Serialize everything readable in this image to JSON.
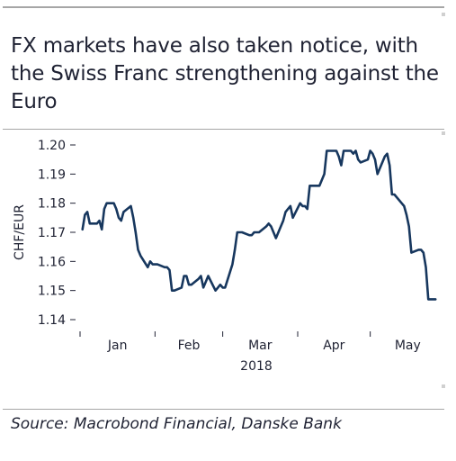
{
  "title": "FX markets have also taken notice, with the Swiss Franc strengthening against the Euro",
  "source": "Source: Macrobond Financial, Danske Bank",
  "colors": {
    "line": "#17375e",
    "text": "#1f2233",
    "rule": "#a6a6a6"
  },
  "chart_data": {
    "type": "line",
    "ylabel": "CHF/EUR",
    "xlabel": "",
    "ylim": [
      1.14,
      1.2
    ],
    "yticks": [
      "1.14",
      "1.15",
      "1.16",
      "1.17",
      "1.18",
      "1.19",
      "1.20"
    ],
    "xticks": [
      "Jan",
      "Feb",
      "Mar",
      "Apr",
      "May"
    ],
    "year_label": "2018",
    "grid": false,
    "legend": "none",
    "series": [
      {
        "x": [
          "2018-01-02",
          "2018-01-03",
          "2018-01-04",
          "2018-01-05",
          "2018-01-08",
          "2018-01-09",
          "2018-01-10",
          "2018-01-11",
          "2018-01-12",
          "2018-01-15",
          "2018-01-16",
          "2018-01-17",
          "2018-01-18",
          "2018-01-19",
          "2018-01-22",
          "2018-01-23",
          "2018-01-24",
          "2018-01-25",
          "2018-01-26",
          "2018-01-29",
          "2018-01-30",
          "2018-01-31",
          "2018-02-01",
          "2018-02-02",
          "2018-02-05",
          "2018-02-06",
          "2018-02-07",
          "2018-02-08",
          "2018-02-09",
          "2018-02-12",
          "2018-02-13",
          "2018-02-14",
          "2018-02-15",
          "2018-02-16",
          "2018-02-19",
          "2018-02-20",
          "2018-02-21",
          "2018-02-22",
          "2018-02-23",
          "2018-02-26",
          "2018-02-27",
          "2018-02-28",
          "2018-03-01",
          "2018-03-02",
          "2018-03-05",
          "2018-03-06",
          "2018-03-07",
          "2018-03-08",
          "2018-03-09",
          "2018-03-12",
          "2018-03-13",
          "2018-03-14",
          "2018-03-15",
          "2018-03-16",
          "2018-03-19",
          "2018-03-20",
          "2018-03-21",
          "2018-03-22",
          "2018-03-23",
          "2018-03-26",
          "2018-03-27",
          "2018-03-28",
          "2018-03-29",
          "2018-03-30",
          "2018-04-02",
          "2018-04-03",
          "2018-04-04",
          "2018-04-05",
          "2018-04-06",
          "2018-04-09",
          "2018-04-10",
          "2018-04-11",
          "2018-04-12",
          "2018-04-13",
          "2018-04-16",
          "2018-04-17",
          "2018-04-18",
          "2018-04-19",
          "2018-04-20",
          "2018-04-23",
          "2018-04-24",
          "2018-04-25",
          "2018-04-26",
          "2018-04-27",
          "2018-04-30",
          "2018-05-01",
          "2018-05-02",
          "2018-05-03",
          "2018-05-04",
          "2018-05-07",
          "2018-05-08",
          "2018-05-09",
          "2018-05-10",
          "2018-05-11",
          "2018-05-14",
          "2018-05-15",
          "2018-05-16",
          "2018-05-17",
          "2018-05-18",
          "2018-05-21",
          "2018-05-22",
          "2018-05-23",
          "2018-05-24",
          "2018-05-25",
          "2018-05-28"
        ],
        "values": [
          1.171,
          1.176,
          1.177,
          1.173,
          1.173,
          1.174,
          1.171,
          1.178,
          1.18,
          1.18,
          1.178,
          1.175,
          1.174,
          1.177,
          1.179,
          1.175,
          1.17,
          1.164,
          1.162,
          1.158,
          1.16,
          1.159,
          1.159,
          1.159,
          1.158,
          1.158,
          1.157,
          1.15,
          1.15,
          1.151,
          1.155,
          1.155,
          1.152,
          1.152,
          1.154,
          1.155,
          1.151,
          1.153,
          1.155,
          1.15,
          1.151,
          1.152,
          1.151,
          1.151,
          1.159,
          1.164,
          1.17,
          1.17,
          1.17,
          1.169,
          1.169,
          1.17,
          1.17,
          1.17,
          1.172,
          1.173,
          1.172,
          1.17,
          1.168,
          1.174,
          1.177,
          1.178,
          1.179,
          1.175,
          1.18,
          1.179,
          1.179,
          1.178,
          1.186,
          1.186,
          1.186,
          1.188,
          1.19,
          1.198,
          1.198,
          1.198,
          1.196,
          1.193,
          1.198,
          1.198,
          1.197,
          1.198,
          1.195,
          1.194,
          1.195,
          1.198,
          1.197,
          1.195,
          1.19,
          1.196,
          1.197,
          1.193,
          1.183,
          1.183,
          1.18,
          1.179,
          1.176,
          1.172,
          1.163,
          1.164,
          1.164,
          1.163,
          1.158,
          1.147,
          1.147
        ]
      }
    ]
  }
}
